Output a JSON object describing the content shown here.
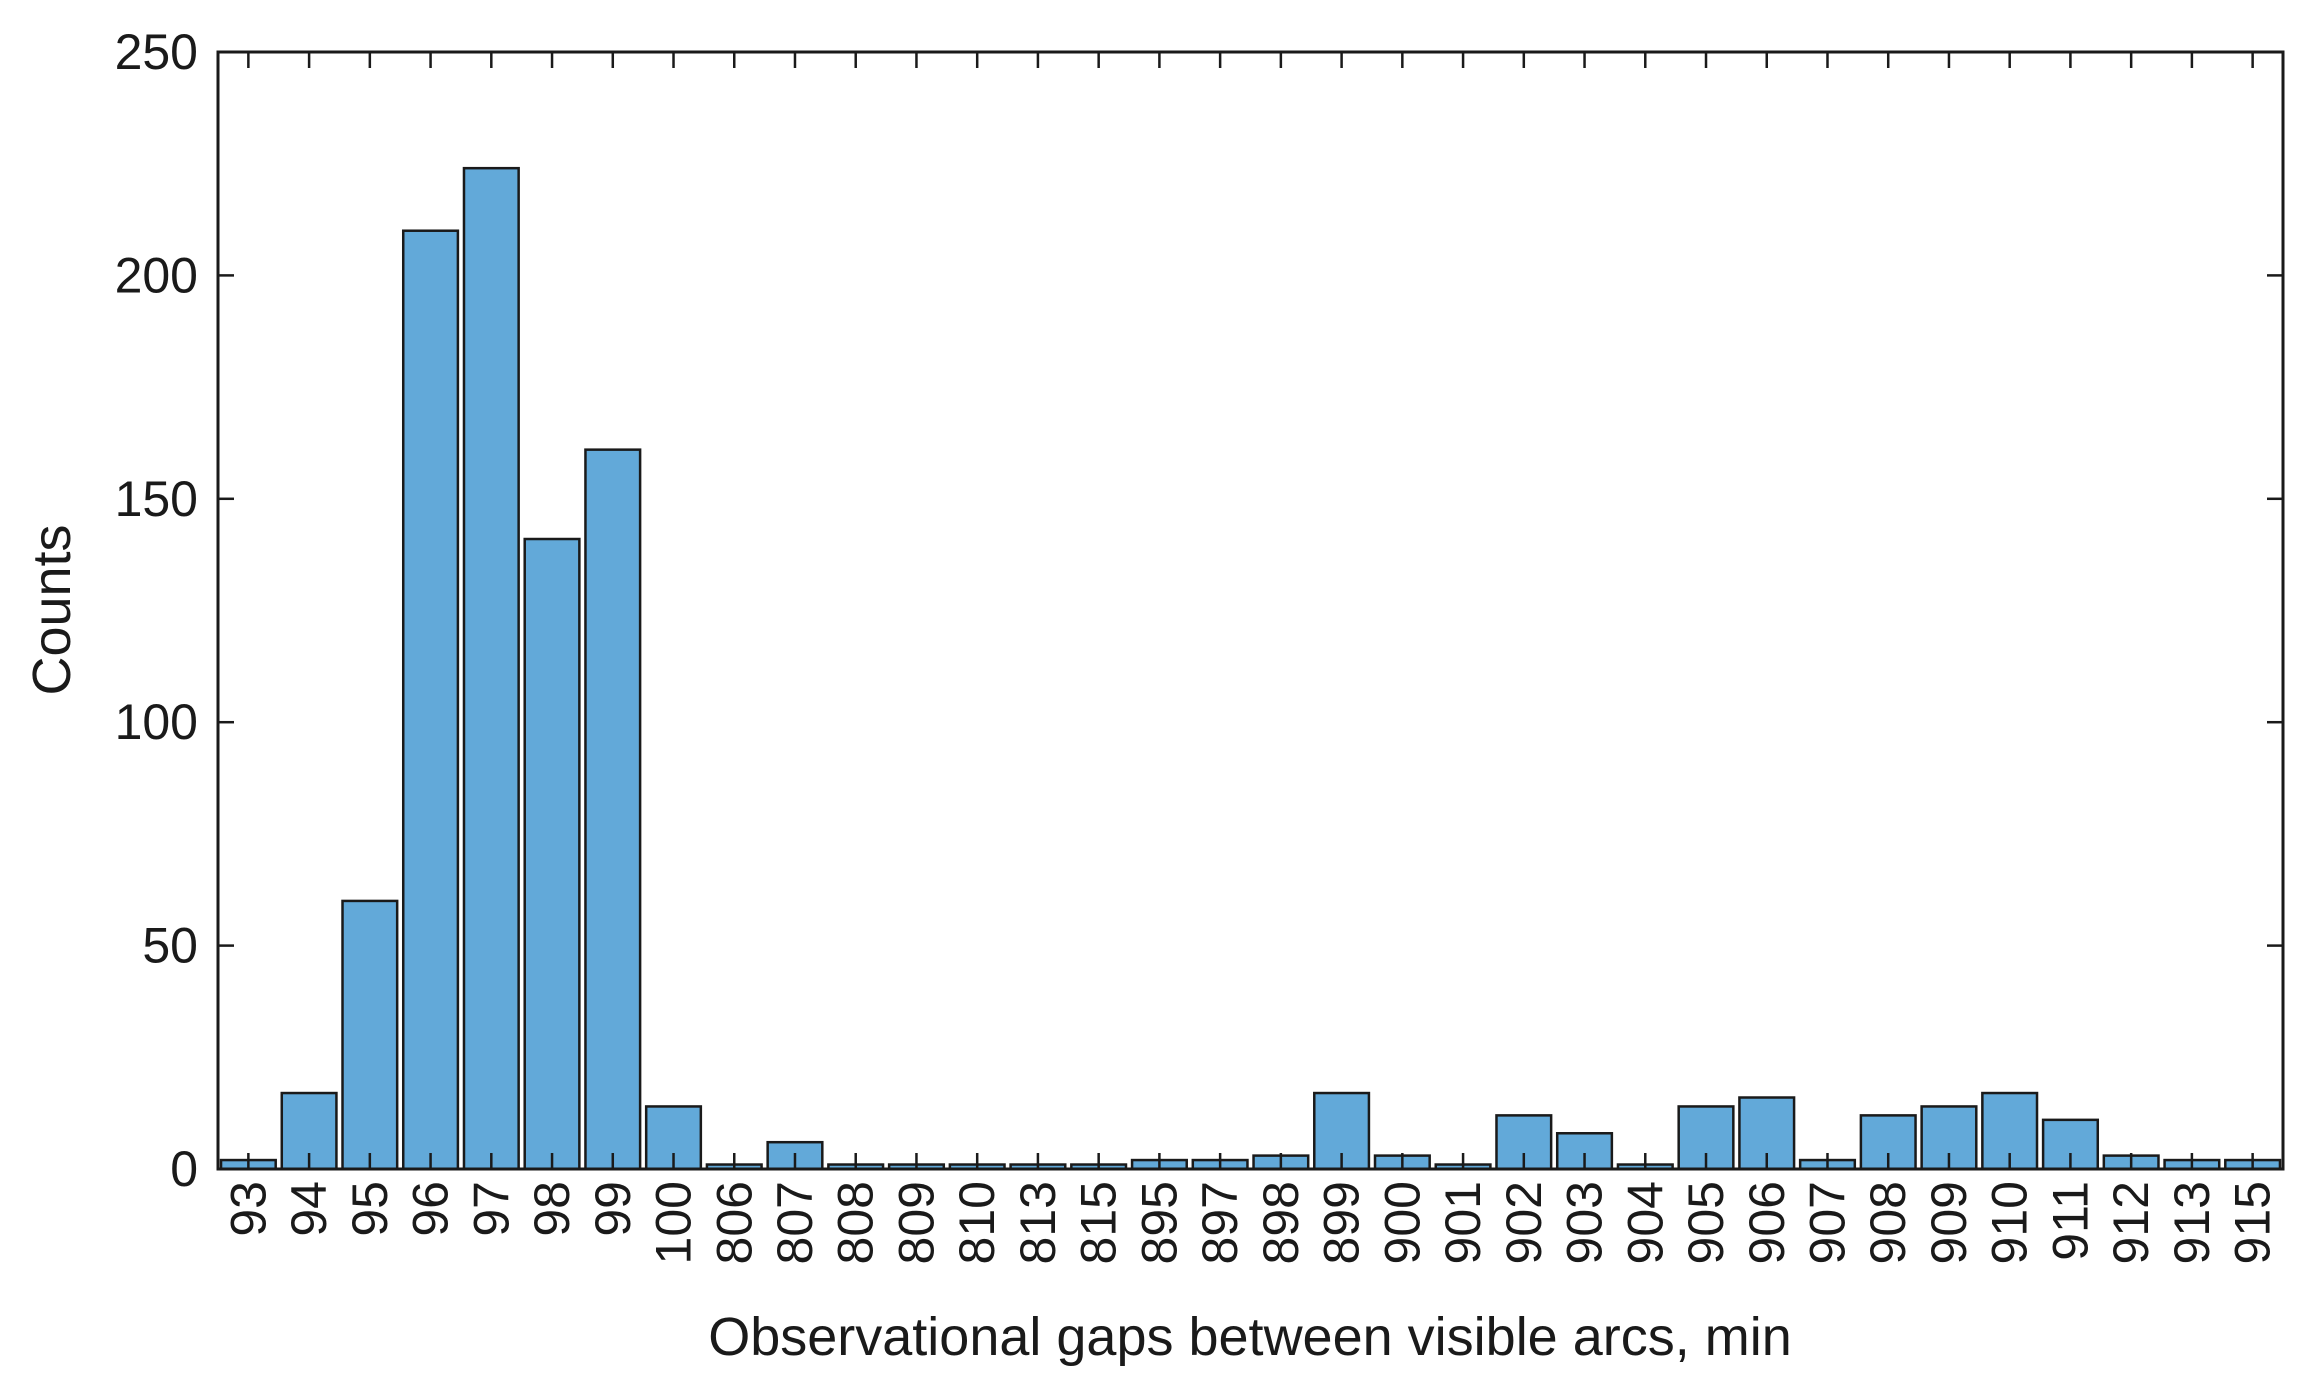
{
  "chart_data": {
    "type": "bar",
    "xlabel": "Observational gaps between visible arcs, min",
    "ylabel": "Counts",
    "ylim": [
      0,
      250
    ],
    "yticks": [
      0,
      50,
      100,
      150,
      200,
      250
    ],
    "categories": [
      "93",
      "94",
      "95",
      "96",
      "97",
      "98",
      "99",
      "100",
      "806",
      "807",
      "808",
      "809",
      "810",
      "813",
      "815",
      "895",
      "897",
      "898",
      "899",
      "900",
      "901",
      "902",
      "903",
      "904",
      "905",
      "906",
      "907",
      "908",
      "909",
      "910",
      "911",
      "912",
      "913",
      "915"
    ],
    "values": [
      2,
      17,
      60,
      210,
      224,
      141,
      161,
      14,
      1,
      6,
      1,
      1,
      1,
      1,
      1,
      2,
      2,
      3,
      17,
      3,
      1,
      12,
      8,
      1,
      14,
      16,
      2,
      12,
      14,
      17,
      11,
      3,
      2,
      2
    ],
    "grid": false,
    "legend": "none",
    "colors": {
      "bar_fill": "#62a9d9",
      "bar_edge": "#1a1a1a",
      "axis": "#1a1a1a"
    }
  }
}
